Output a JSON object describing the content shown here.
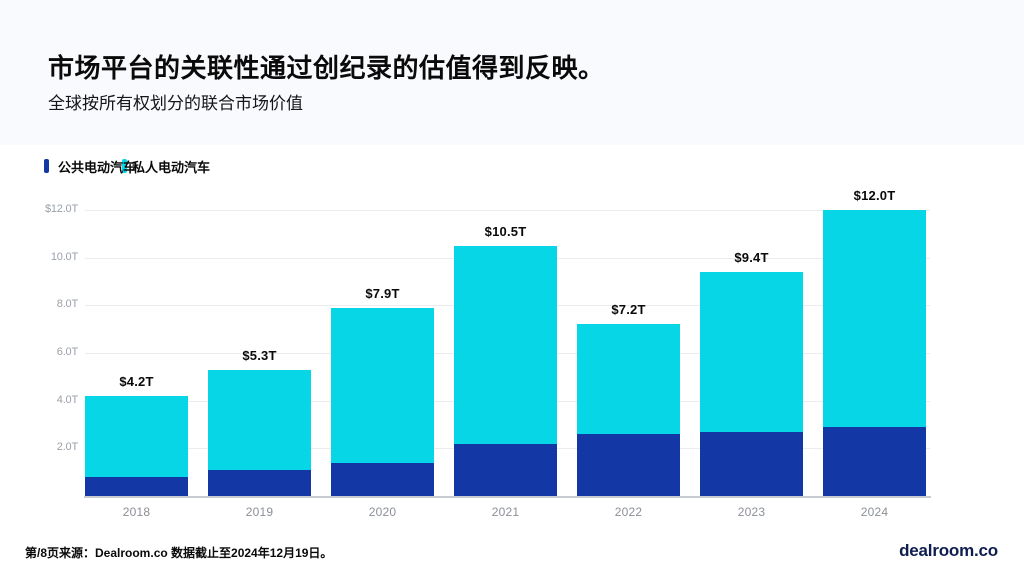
{
  "page": {
    "title": "市场平台的关联性通过创纪录的估值得到反映。",
    "subtitle": "全球按所有权划分的联合市场价值",
    "footer_source": "第/8页来源：Dealroom.co 数据截止至2024年12月19日。",
    "footer_logo": "dealroom.co"
  },
  "legend": {
    "items": [
      {
        "label": "公共电动汽车",
        "color": "#1437a6"
      },
      {
        "label": "私人电动汽车",
        "color": "#06d6e6"
      }
    ]
  },
  "colors": {
    "header_band": "#f9fafd",
    "public_bar": "#1437a6",
    "private_bar": "#06d6e6",
    "gridline": "#ececf0",
    "axis_line": "#c9cdd2",
    "tick_label": "#9aa1a9",
    "value_label": "#0a0a0a",
    "logo_navy": "#0e1e50"
  },
  "chart_data": {
    "type": "bar",
    "stacked": true,
    "title": "全球按所有权划分的联合市场价值",
    "categories": [
      "2018",
      "2019",
      "2020",
      "2021",
      "2022",
      "2023",
      "2024"
    ],
    "series": [
      {
        "name": "公共电动汽车",
        "color": "#1437a6",
        "values": [
          0.8,
          1.1,
          1.4,
          2.2,
          2.6,
          2.7,
          2.9
        ]
      },
      {
        "name": "私人电动汽车",
        "color": "#06d6e6",
        "values": [
          3.4,
          4.2,
          6.5,
          8.3,
          4.6,
          6.7,
          9.1
        ]
      }
    ],
    "total_values": [
      4.2,
      5.3,
      7.9,
      10.5,
      7.2,
      9.4,
      12.0
    ],
    "total_labels": [
      "$4.2T",
      "$5.3T",
      "$7.9T",
      "$10.5T",
      "$7.2T",
      "$9.4T",
      "$12.0T"
    ],
    "ylim": [
      0,
      12
    ],
    "yticks": [
      2,
      4,
      6,
      8,
      10,
      12
    ],
    "ytick_labels": [
      "2.0T",
      "4.0T",
      "6.0T",
      "8.0T",
      "10.0T",
      "$12.0T"
    ],
    "grid": true,
    "legend_position": "top-left"
  }
}
